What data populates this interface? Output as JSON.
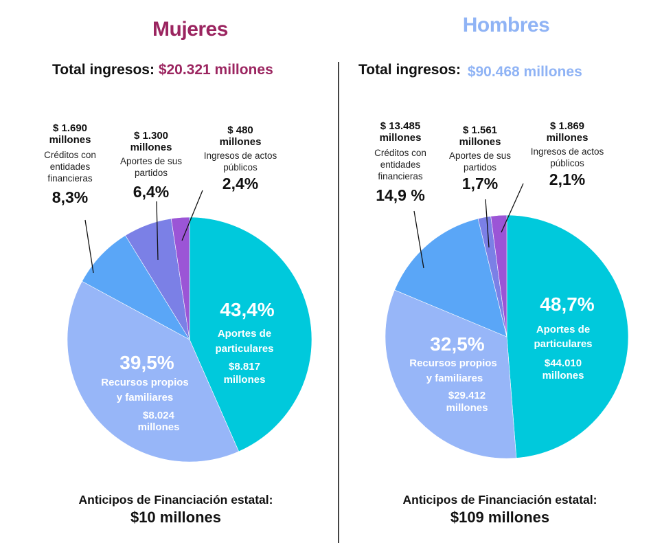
{
  "colors": {
    "women_title": "#9b2560",
    "men_title": "#8fb3f5",
    "slice_particulares": "#00c9dc",
    "slice_recursos": "#97b6f8",
    "slice_creditos": "#5aa6f7",
    "slice_partidos": "#7b80e6",
    "slice_publicos": "#9b55d6"
  },
  "women": {
    "title": "Mujeres",
    "total_label": "Total ingresos:",
    "total_value": "$20.321 millones",
    "creditos": {
      "amount": "$ 1.690",
      "unit": "millones",
      "desc": [
        "Créditos con",
        "entidades",
        "financieras"
      ],
      "pct": "8,3%"
    },
    "partidos": {
      "amount": "$ 1.300",
      "unit": "millones",
      "desc": [
        "Aportes de sus",
        "partidos"
      ],
      "pct": "6,4%"
    },
    "publicos": {
      "amount": "$ 480",
      "unit": "millones",
      "desc": [
        "Ingresos de actos",
        "públicos"
      ],
      "pct": "2,4%"
    },
    "particulares": {
      "pct": "43,4%",
      "label": [
        "Aportes de",
        "particulares"
      ],
      "amount": [
        "$8.817",
        "millones"
      ]
    },
    "recursos": {
      "pct": "39,5%",
      "label": [
        "Recursos propios",
        "y familiares"
      ],
      "amount": [
        "$8.024",
        "millones"
      ]
    },
    "footer": {
      "line1": "Anticipos de Financiación estatal:",
      "line2": "$10 millones"
    }
  },
  "men": {
    "title": "Hombres",
    "total_label": "Total ingresos:",
    "total_value": "$90.468 millones",
    "creditos": {
      "amount": "$ 13.485",
      "unit": "millones",
      "desc": [
        "Créditos con",
        "entidades",
        "financieras"
      ],
      "pct": "14,9 %"
    },
    "partidos": {
      "amount": "$ 1.561",
      "unit": "millones",
      "desc": [
        "Aportes de sus",
        "partidos"
      ],
      "pct": "1,7%"
    },
    "publicos": {
      "amount": "$ 1.869",
      "unit": "millones",
      "desc": [
        "Ingresos de actos",
        "públicos"
      ],
      "pct": "2,1%"
    },
    "particulares": {
      "pct": "48,7%",
      "label": [
        "Aportes de",
        "particulares"
      ],
      "amount": [
        "$44.010",
        "millones"
      ]
    },
    "recursos": {
      "pct": "32,5%",
      "label": [
        "Recursos propios",
        "y familiares"
      ],
      "amount": [
        "$29.412",
        "millones"
      ]
    },
    "footer": {
      "line1": "Anticipos de Financiación estatal:",
      "line2": "$109 millones"
    }
  },
  "chart_data": [
    {
      "type": "pie",
      "title": "Mujeres",
      "categories": [
        "Aportes de particulares",
        "Recursos propios y familiares",
        "Créditos con entidades financieras",
        "Aportes de sus partidos",
        "Ingresos de actos públicos"
      ],
      "values": [
        43.4,
        39.5,
        8.3,
        6.4,
        2.4
      ],
      "amounts_millones": [
        8817,
        8024,
        1690,
        1300,
        480
      ],
      "total_millones": 20321
    },
    {
      "type": "pie",
      "title": "Hombres",
      "categories": [
        "Aportes de particulares",
        "Recursos propios y familiares",
        "Créditos con entidades financieras",
        "Aportes de sus partidos",
        "Ingresos de actos públicos"
      ],
      "values": [
        48.7,
        32.5,
        14.9,
        1.7,
        2.1
      ],
      "amounts_millones": [
        44010,
        29412,
        13485,
        1561,
        1869
      ],
      "total_millones": 90468
    }
  ]
}
